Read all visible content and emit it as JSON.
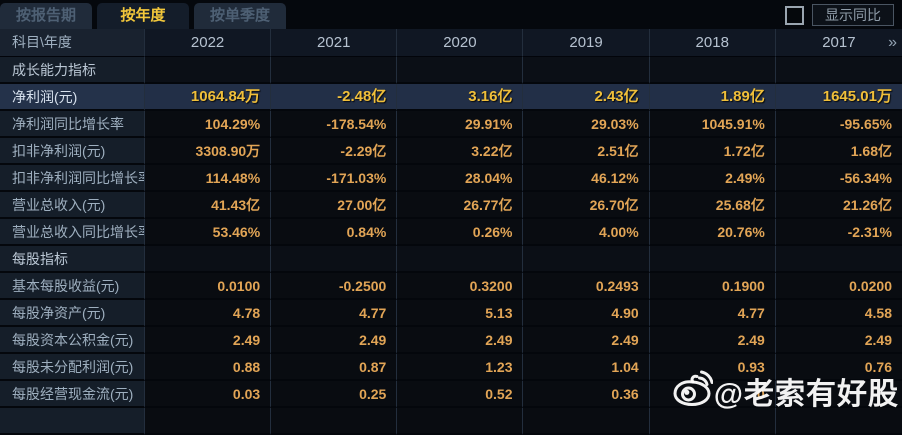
{
  "tabs": [
    {
      "label": "按报告期",
      "active": false
    },
    {
      "label": "按年度",
      "active": true
    },
    {
      "label": "按单季度",
      "active": false
    }
  ],
  "controls": {
    "show_yoy_label": "显示同比",
    "show_yoy_checked": false
  },
  "table": {
    "corner_label": "科目\\年度",
    "years": [
      "2022",
      "2021",
      "2020",
      "2019",
      "2018",
      "2017"
    ],
    "more_icon": "»",
    "rows": [
      {
        "type": "section",
        "label": "成长能力指标",
        "values": [
          "",
          "",
          "",
          "",
          "",
          ""
        ]
      },
      {
        "type": "data",
        "highlight": true,
        "label": "净利润(元)",
        "values": [
          "1064.84万",
          "-2.48亿",
          "3.16亿",
          "2.43亿",
          "1.89亿",
          "1645.01万"
        ]
      },
      {
        "type": "data",
        "label": "净利润同比增长率",
        "values": [
          "104.29%",
          "-178.54%",
          "29.91%",
          "29.03%",
          "1045.91%",
          "-95.65%"
        ]
      },
      {
        "type": "data",
        "label": "扣非净利润(元)",
        "values": [
          "3308.90万",
          "-2.29亿",
          "3.22亿",
          "2.51亿",
          "1.72亿",
          "1.68亿"
        ]
      },
      {
        "type": "data",
        "label": "扣非净利润同比增长率",
        "values": [
          "114.48%",
          "-171.03%",
          "28.04%",
          "46.12%",
          "2.49%",
          "-56.34%"
        ]
      },
      {
        "type": "data",
        "label": "营业总收入(元)",
        "values": [
          "41.43亿",
          "27.00亿",
          "26.77亿",
          "26.70亿",
          "25.68亿",
          "21.26亿"
        ]
      },
      {
        "type": "data",
        "label": "营业总收入同比增长率",
        "values": [
          "53.46%",
          "0.84%",
          "0.26%",
          "4.00%",
          "20.76%",
          "-2.31%"
        ]
      },
      {
        "type": "section",
        "label": "每股指标",
        "values": [
          "",
          "",
          "",
          "",
          "",
          ""
        ]
      },
      {
        "type": "data",
        "label": "基本每股收益(元)",
        "values": [
          "0.0100",
          "-0.2500",
          "0.3200",
          "0.2493",
          "0.1900",
          "0.0200"
        ]
      },
      {
        "type": "data",
        "label": "每股净资产(元)",
        "values": [
          "4.78",
          "4.77",
          "5.13",
          "4.90",
          "4.77",
          "4.58"
        ]
      },
      {
        "type": "data",
        "label": "每股资本公积金(元)",
        "values": [
          "2.49",
          "2.49",
          "2.49",
          "2.49",
          "2.49",
          "2.49"
        ]
      },
      {
        "type": "data",
        "label": "每股未分配利润(元)",
        "values": [
          "0.88",
          "0.87",
          "1.23",
          "1.04",
          "0.93",
          "0.76"
        ]
      },
      {
        "type": "data",
        "label": "每股经营现金流(元)",
        "values": [
          "0.03",
          "0.25",
          "0.52",
          "0.36",
          "0",
          ""
        ]
      },
      {
        "type": "data",
        "label": "",
        "values": [
          "",
          "",
          "",
          "",
          "",
          ""
        ]
      }
    ]
  },
  "watermark": {
    "icon": "weibo-logo",
    "text": "@老索有好股"
  },
  "colors": {
    "accent_gold": "#f3c83b",
    "value_orange": "#e2a556",
    "highlight_row_bg": "#222f47",
    "label_col_bg": "#151e29",
    "value_col_bg": "#090c11",
    "divider": "#232e3d"
  }
}
